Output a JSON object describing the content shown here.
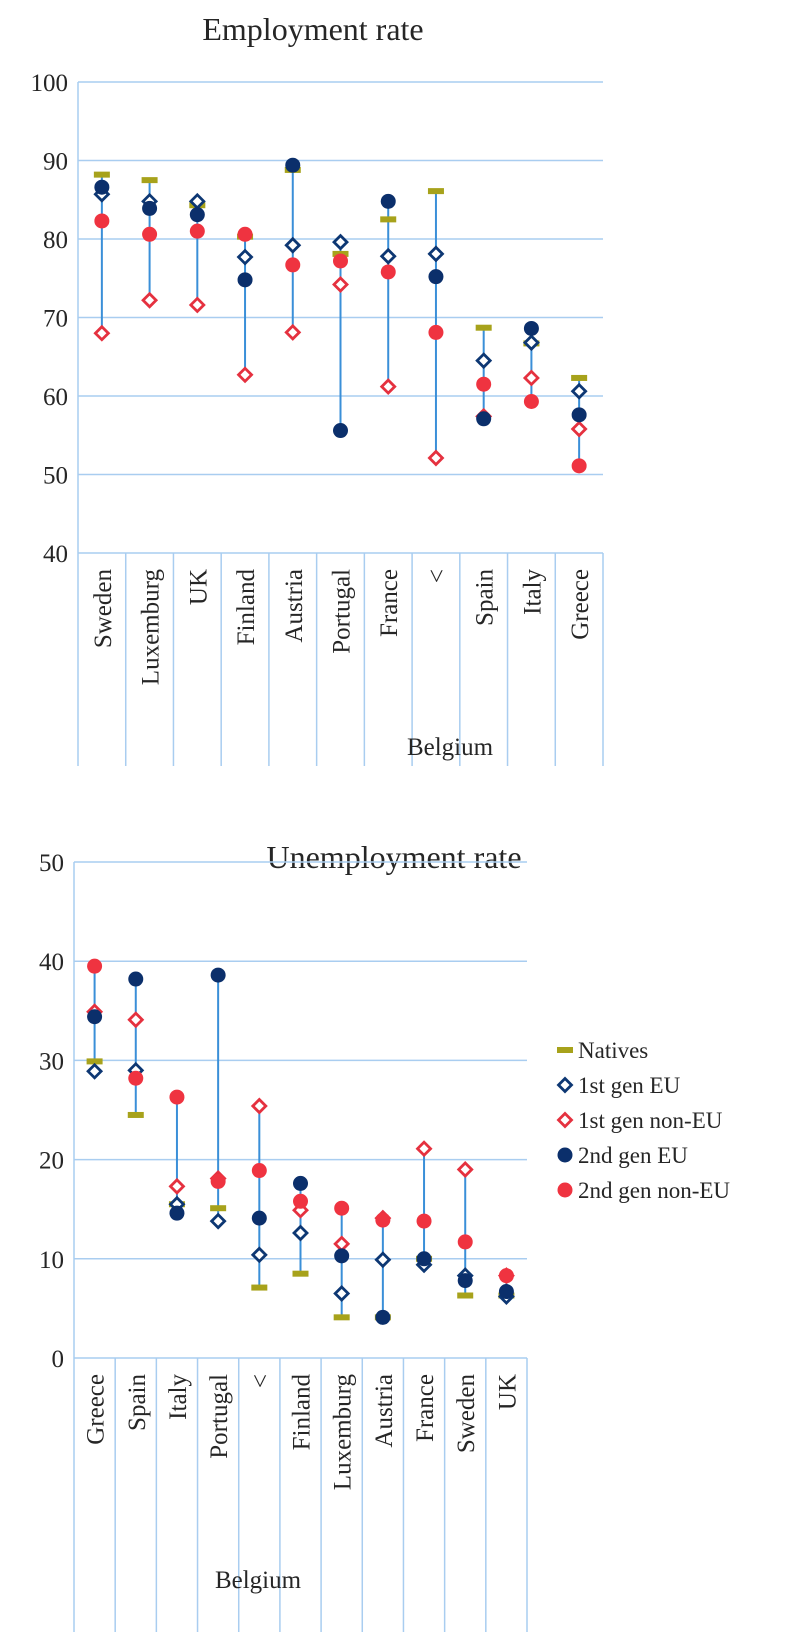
{
  "colors": {
    "natives": "#a7a21b",
    "gen1_eu": "#0d3773",
    "gen1_noneu": "#e5313f",
    "gen2_eu": "#0b2f6b",
    "gen2_noneu": "#ef3340",
    "range_line": "#3a8fd8",
    "grid": "#a9cdf0"
  },
  "legend": {
    "items": [
      {
        "key": "natives",
        "label": "Natives",
        "marker": "dash"
      },
      {
        "key": "gen1_eu",
        "label": "1st gen EU",
        "marker": "diamond-open"
      },
      {
        "key": "gen1_noneu",
        "label": "1st gen non-EU",
        "marker": "diamond-open"
      },
      {
        "key": "gen2_eu",
        "label": "2nd gen EU",
        "marker": "circle"
      },
      {
        "key": "gen2_noneu",
        "label": "2nd gen non-EU",
        "marker": "circle"
      }
    ]
  },
  "chart_data": [
    {
      "type": "scatter",
      "title": "Employment rate",
      "xlabel": "",
      "ylabel": "",
      "ylim": [
        40,
        100
      ],
      "yticks": [
        40,
        50,
        60,
        70,
        80,
        90,
        100
      ],
      "grid": true,
      "categories": [
        "Sweden",
        "Luxemburg",
        "UK",
        "Finland",
        "Austria",
        "Portugal",
        "France",
        "<",
        "Spain",
        "Italy",
        "Greece"
      ],
      "group_label": "Belgium",
      "series": [
        {
          "name": "Natives",
          "key": "natives",
          "values": [
            88.2,
            87.5,
            84.3,
            80.3,
            88.8,
            78.1,
            82.5,
            86.1,
            68.7,
            66.7,
            62.3
          ]
        },
        {
          "name": "1st gen EU",
          "key": "gen1_eu",
          "values": [
            85.7,
            84.8,
            84.8,
            77.7,
            79.2,
            79.6,
            77.8,
            78.1,
            64.5,
            66.8,
            60.6
          ]
        },
        {
          "name": "1st gen non-EU",
          "key": "gen1_noneu",
          "values": [
            68.0,
            72.2,
            71.6,
            62.7,
            68.1,
            74.2,
            61.2,
            52.1,
            57.4,
            62.3,
            55.8
          ]
        },
        {
          "name": "2nd gen EU",
          "key": "gen2_eu",
          "values": [
            86.6,
            83.9,
            83.1,
            74.8,
            89.4,
            55.6,
            84.8,
            75.2,
            57.1,
            68.6,
            57.6
          ]
        },
        {
          "name": "2nd gen non-EU",
          "key": "gen2_noneu",
          "values": [
            82.3,
            80.6,
            81.0,
            80.6,
            76.7,
            77.2,
            75.8,
            68.1,
            61.5,
            59.3,
            51.1
          ]
        }
      ]
    },
    {
      "type": "scatter",
      "title": "Unemployment rate",
      "xlabel": "",
      "ylabel": "",
      "ylim": [
        0,
        50
      ],
      "yticks": [
        0,
        10,
        20,
        30,
        40,
        50
      ],
      "grid": true,
      "legend_position": "right",
      "categories": [
        "Greece",
        "Spain",
        "Italy",
        "Portugal",
        "<",
        "Finland",
        "Luxemburg",
        "Austria",
        "France",
        "Sweden",
        "UK"
      ],
      "group_label": "Belgium",
      "series": [
        {
          "name": "Natives",
          "key": "natives",
          "values": [
            29.9,
            24.5,
            15.5,
            15.1,
            7.1,
            8.5,
            4.1,
            4.1,
            10.0,
            6.3,
            6.3
          ]
        },
        {
          "name": "1st gen EU",
          "key": "gen1_eu",
          "values": [
            28.9,
            29.0,
            15.5,
            13.8,
            10.4,
            12.6,
            6.5,
            9.9,
            9.4,
            8.3,
            6.2
          ]
        },
        {
          "name": "1st gen non-EU",
          "key": "gen1_noneu",
          "values": [
            34.9,
            34.1,
            17.3,
            18.1,
            25.4,
            14.9,
            11.5,
            14.1,
            21.1,
            19.0,
            8.3
          ]
        },
        {
          "name": "2nd gen EU",
          "key": "gen2_eu",
          "values": [
            34.4,
            38.2,
            14.6,
            38.6,
            14.1,
            17.6,
            10.3,
            4.1,
            10.0,
            7.8,
            6.7
          ]
        },
        {
          "name": "2nd gen non-EU",
          "key": "gen2_noneu",
          "values": [
            39.5,
            28.2,
            26.3,
            17.8,
            18.9,
            15.8,
            15.1,
            13.9,
            13.8,
            11.7,
            8.3
          ]
        }
      ]
    }
  ]
}
